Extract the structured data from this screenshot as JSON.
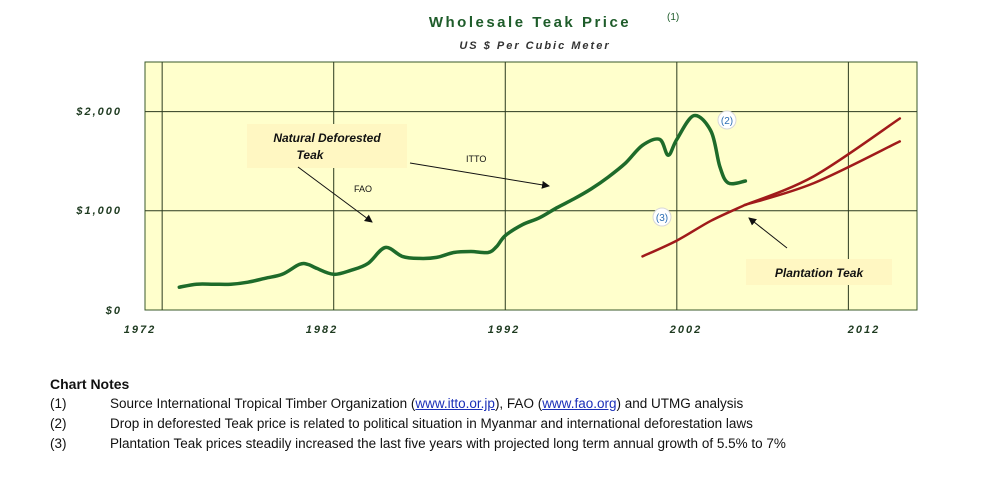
{
  "chart_data": {
    "type": "line",
    "title": "Wholesale Teak Price",
    "title_ref": "(1)",
    "subtitle": "US $ Per Cubic Meter",
    "x_ticks": [
      "1972",
      "1982",
      "1992",
      "2002",
      "2012"
    ],
    "y_ticks": [
      "$0",
      "$1,000",
      "$2,000"
    ],
    "xlim": [
      1971,
      2016
    ],
    "ylim": [
      0,
      2500
    ],
    "grid": true,
    "background_color": "#FFFFCC",
    "series": [
      {
        "color": "#1E6B2A",
        "points": [
          [
            1973,
            230
          ],
          [
            1974,
            260
          ],
          [
            1975,
            260
          ],
          [
            1976,
            260
          ],
          [
            1977,
            280
          ],
          [
            1978,
            320
          ],
          [
            1979,
            360
          ],
          [
            1980,
            460
          ],
          [
            1980.5,
            460
          ],
          [
            1981,
            420
          ],
          [
            1982,
            360
          ],
          [
            1983,
            400
          ],
          [
            1984,
            470
          ],
          [
            1985,
            630
          ],
          [
            1986,
            540
          ],
          [
            1987,
            520
          ],
          [
            1988,
            530
          ],
          [
            1989,
            580
          ],
          [
            1990,
            590
          ],
          [
            1991,
            580
          ],
          [
            1991.5,
            640
          ],
          [
            1992,
            750
          ],
          [
            1993,
            860
          ],
          [
            1994,
            930
          ],
          [
            1995,
            1030
          ],
          [
            1996,
            1120
          ],
          [
            1997,
            1220
          ],
          [
            1998,
            1340
          ],
          [
            1999,
            1480
          ],
          [
            2000,
            1660
          ],
          [
            2001,
            1720
          ],
          [
            2001.5,
            1560
          ],
          [
            2002,
            1720
          ],
          [
            2003,
            1960
          ],
          [
            2004,
            1800
          ],
          [
            2004.5,
            1450
          ],
          [
            2005,
            1280
          ],
          [
            2006,
            1300
          ]
        ]
      },
      {
        "color": "#A01A1A",
        "points": [
          [
            2000,
            540
          ],
          [
            2002,
            700
          ],
          [
            2004,
            900
          ],
          [
            2006,
            1060
          ]
        ]
      },
      {
        "color": "#A01A1A",
        "points": [
          [
            2006,
            1060
          ],
          [
            2010,
            1350
          ],
          [
            2015,
            1930
          ]
        ]
      },
      {
        "color": "#A01A1A",
        "points": [
          [
            2006,
            1060
          ],
          [
            2010,
            1280
          ],
          [
            2015,
            1700
          ]
        ]
      }
    ],
    "annotations": {
      "natural_line1": "Natural Deforested",
      "natural_line2": "Teak",
      "fao": "FAO",
      "itto": "ITTO",
      "ref2": "(2)",
      "ref3": "(3)",
      "plantation": "Plantation Teak"
    },
    "colors": {
      "title_green": "#1E5C2A",
      "label_box": "#FFF7C2",
      "ref_text": "#2D6FB5"
    }
  },
  "notes": {
    "title": "Chart Notes",
    "items": [
      {
        "num": "(1)",
        "pre": "Source International Tropical Timber Organization (",
        "link1": "www.itto.or.jp",
        "mid": "), FAO (",
        "link2": "www.fao.org",
        "post": ") and UTMG analysis"
      },
      {
        "num": "(2)",
        "text": "Drop in deforested Teak price is related to political situation in Myanmar and international deforestation laws"
      },
      {
        "num": "(3)",
        "text": "Plantation Teak prices steadily increased the last five years with projected long term annual growth of 5.5% to 7%"
      }
    ]
  }
}
